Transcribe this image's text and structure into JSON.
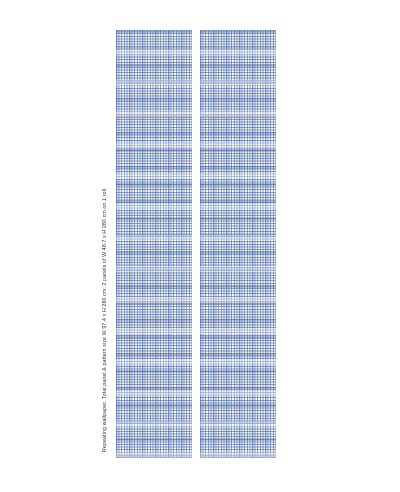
{
  "product": {
    "caption": "Repeating wallpaper. Total panel & pattern size W 97.4 x H 280 cm. 2 panels of W 48.7 x H 280 cm on 1 roll.",
    "pattern_color": "#3a5c9c",
    "panel_count": 2
  }
}
